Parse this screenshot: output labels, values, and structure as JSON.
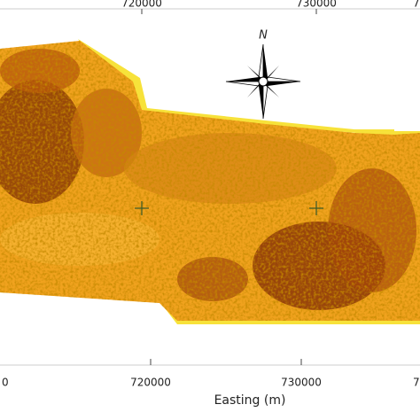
{
  "map": {
    "top_ticks": [
      "720000",
      "730000",
      "7"
    ],
    "bottom_ticks": [
      "0",
      "720000",
      "730000",
      "7"
    ],
    "axis_title": "Easting (m)",
    "north_label": "N"
  }
}
